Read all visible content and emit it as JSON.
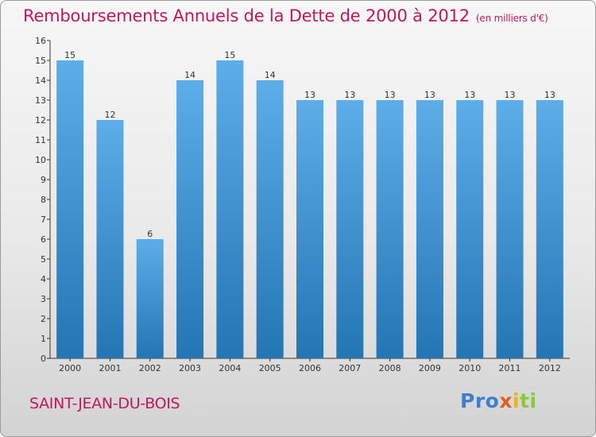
{
  "header": {
    "title": "Remboursements Annuels de la Dette de 2000 à 2012",
    "unit": "(en milliers d'€)"
  },
  "footer": {
    "city": "SAINT-JEAN-DU-BOIS",
    "logo_parts": [
      "Pro",
      "x",
      "i",
      "ti"
    ]
  },
  "colors": {
    "title": "#c2185b",
    "bar_light": "#5dade8",
    "bar_dark": "#2475b4",
    "axis": "#333333"
  },
  "chart_data": {
    "type": "bar",
    "categories": [
      "2000",
      "2001",
      "2002",
      "2003",
      "2004",
      "2005",
      "2006",
      "2007",
      "2008",
      "2009",
      "2010",
      "2011",
      "2012"
    ],
    "values": [
      15,
      12,
      6,
      14,
      15,
      14,
      13,
      13,
      13,
      13,
      13,
      13,
      13
    ],
    "title": "Remboursements Annuels de la Dette de 2000 à 2012",
    "xlabel": "",
    "ylabel": "",
    "ylim": [
      0,
      16
    ],
    "yticks": [
      0,
      1,
      2,
      3,
      4,
      5,
      6,
      7,
      8,
      9,
      10,
      11,
      12,
      13,
      14,
      15,
      16
    ],
    "grid": false,
    "data_labels": true
  }
}
